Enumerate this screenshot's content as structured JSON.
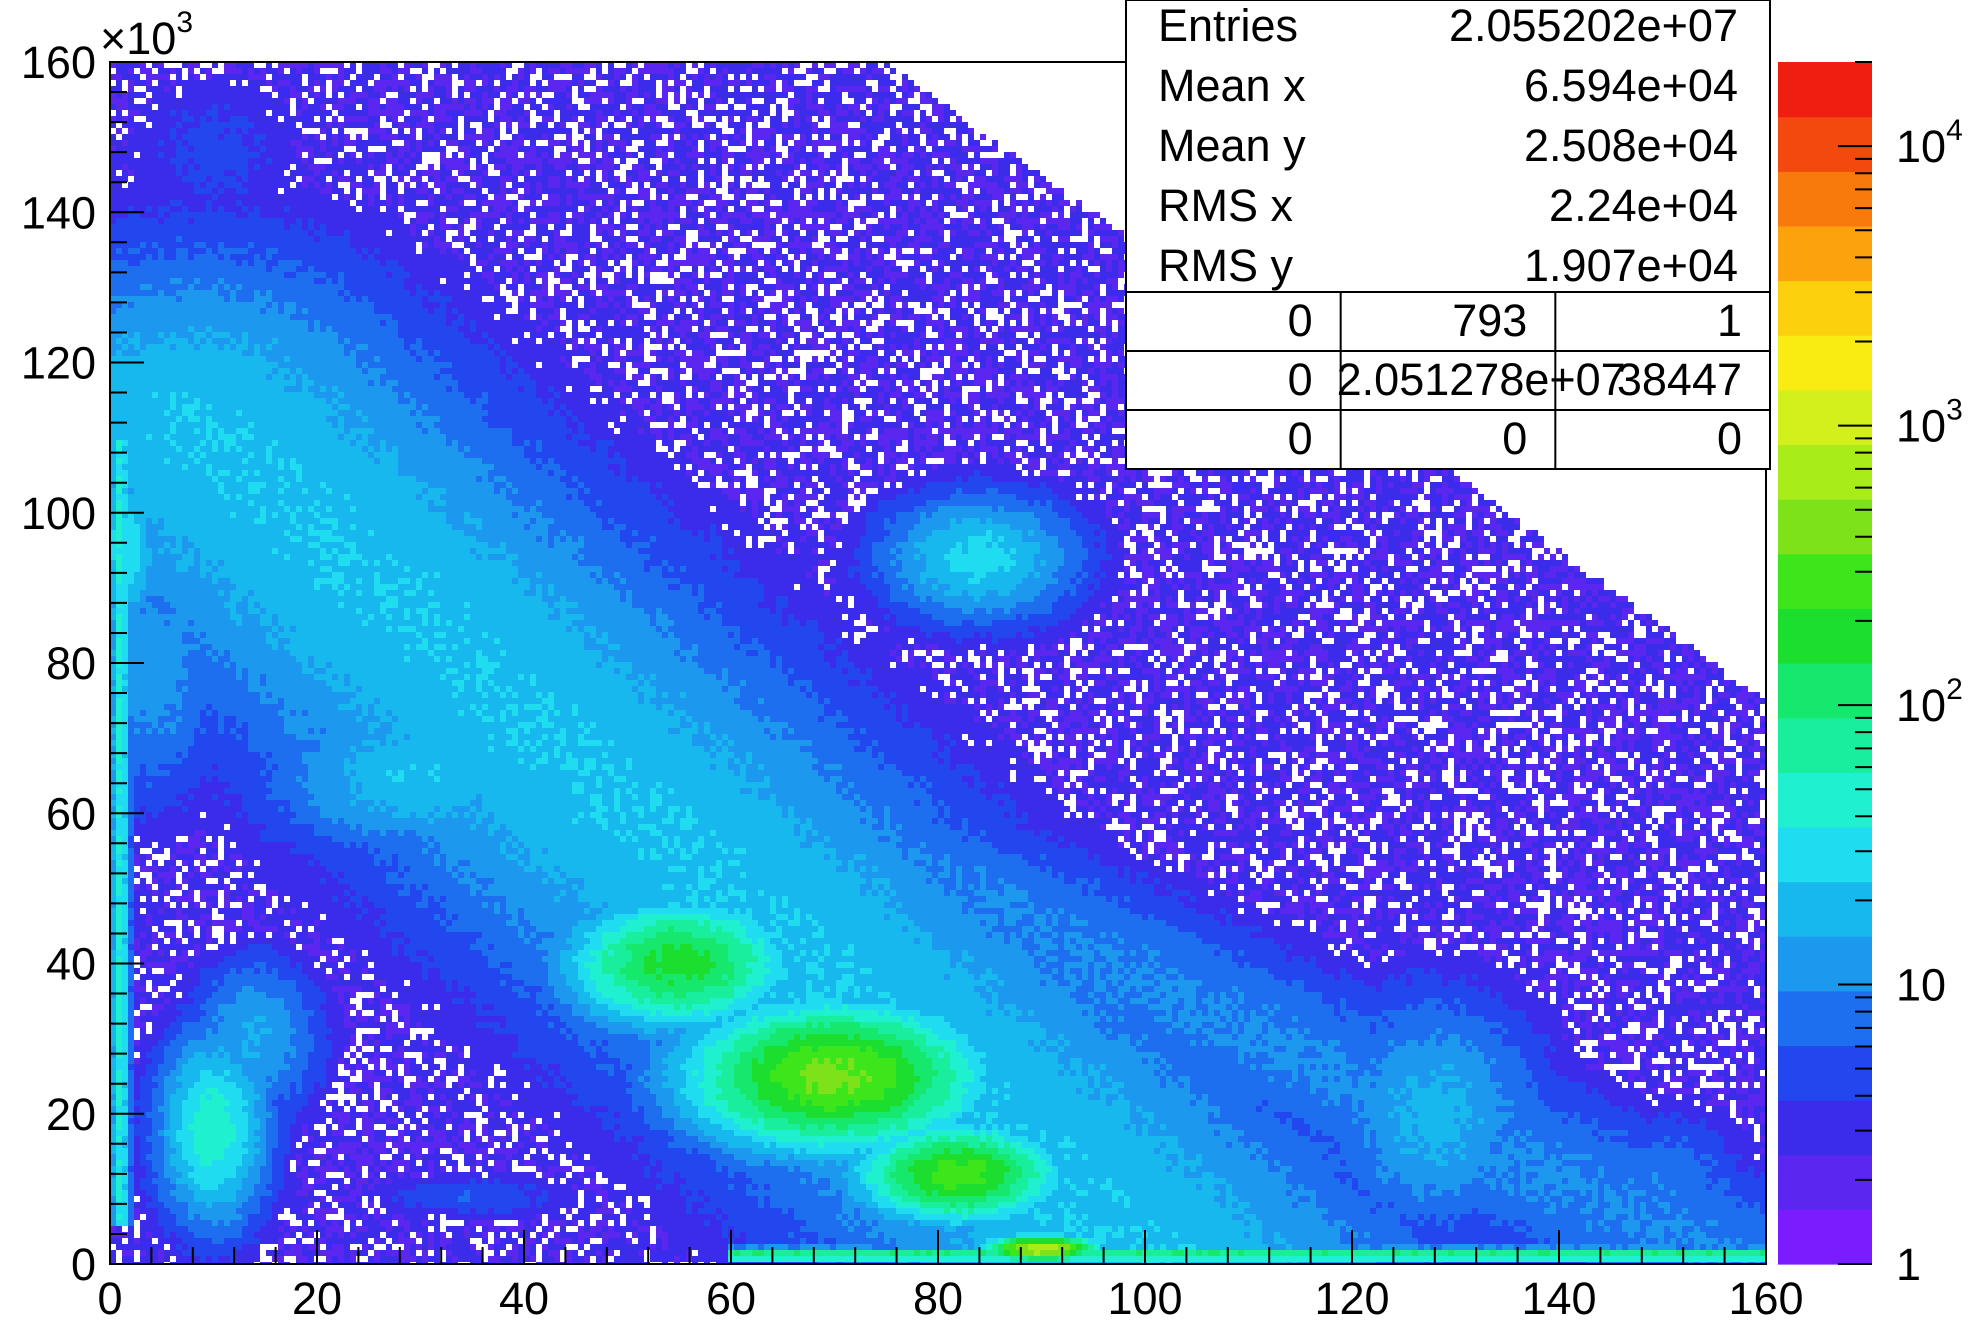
{
  "chart_data": {
    "type": "heatmap",
    "title": "",
    "xlabel": "",
    "ylabel": "",
    "xlim": [
      0,
      160
    ],
    "ylim": [
      0,
      160
    ],
    "x_ticks": [
      {
        "value": 0,
        "label": "0"
      },
      {
        "value": 20,
        "label": "20"
      },
      {
        "value": 40,
        "label": "40"
      },
      {
        "value": 60,
        "label": "60"
      },
      {
        "value": 80,
        "label": "80"
      },
      {
        "value": 100,
        "label": "100"
      },
      {
        "value": 120,
        "label": "120"
      },
      {
        "value": 140,
        "label": "140"
      },
      {
        "value": 160,
        "label": "160"
      }
    ],
    "y_ticks": [
      {
        "value": 0,
        "label": "0"
      },
      {
        "value": 20,
        "label": "20"
      },
      {
        "value": 40,
        "label": "40"
      },
      {
        "value": 60,
        "label": "60"
      },
      {
        "value": 80,
        "label": "80"
      },
      {
        "value": 100,
        "label": "100"
      },
      {
        "value": 120,
        "label": "120"
      },
      {
        "value": 140,
        "label": "140"
      },
      {
        "value": 160,
        "label": "160"
      }
    ],
    "y_multiplier": {
      "base": "×10",
      "exp": "3"
    },
    "colorbar": {
      "scale": "log",
      "range": [
        1,
        20000
      ],
      "palette": [
        "#7a1cff",
        "#5a26f0",
        "#3b2bea",
        "#2347ee",
        "#1d6ff0",
        "#1c98ee",
        "#16b8ee",
        "#20dcf0",
        "#1ff0cf",
        "#18ee9c",
        "#15e86c",
        "#1bde2e",
        "#3ce61a",
        "#7ee21a",
        "#a8ec1a",
        "#d4f01c",
        "#f8ec12",
        "#fdd00e",
        "#fca20c",
        "#f87a0c",
        "#f3480e",
        "#f01e10"
      ],
      "ticks": [
        {
          "value": 1,
          "base": "1",
          "exp": ""
        },
        {
          "value": 10,
          "base": "10",
          "exp": ""
        },
        {
          "value": 100,
          "base": "10",
          "exp": "2"
        },
        {
          "value": 1000,
          "base": "10",
          "exp": "3"
        },
        {
          "value": 10000,
          "base": "10",
          "exp": "4"
        }
      ]
    },
    "features": [
      {
        "kind": "background",
        "value": 0.4
      },
      {
        "kind": "band",
        "x1": 0,
        "y1": 103,
        "x2": 160,
        "y2": -2,
        "width": 11,
        "value": 1.0
      },
      {
        "kind": "band",
        "x1": 8,
        "y1": 112,
        "x2": 105,
        "y2": -6,
        "width": 22,
        "value": 1.35
      },
      {
        "kind": "band",
        "x1": 35,
        "y1": 86,
        "x2": 102,
        "y2": -2,
        "width": 14,
        "value": 1.3
      },
      {
        "kind": "blob",
        "cx": 10,
        "cy": 148,
        "sx": 9,
        "sy": 11,
        "value": 0.65
      },
      {
        "kind": "blob",
        "cx": 1.5,
        "cy": 95,
        "sx": 3,
        "sy": 10,
        "value": 1.55
      },
      {
        "kind": "blob",
        "cx": 4,
        "cy": 80,
        "sx": 7,
        "sy": 18,
        "value": 1.1
      },
      {
        "kind": "blob",
        "cx": 30,
        "cy": 65,
        "sx": 14,
        "sy": 10,
        "value": 1.35
      },
      {
        "kind": "blob",
        "cx": 55,
        "cy": 40,
        "sx": 10,
        "sy": 8,
        "value": 2.25
      },
      {
        "kind": "blob",
        "cx": 70,
        "cy": 25,
        "sx": 13,
        "sy": 9,
        "value": 2.6
      },
      {
        "kind": "blob",
        "cx": 82,
        "cy": 12,
        "sx": 9,
        "sy": 6,
        "value": 2.45
      },
      {
        "kind": "blob",
        "cx": 90,
        "cy": 2,
        "sx": 5,
        "sy": 1.6,
        "value": 2.9
      },
      {
        "kind": "blob",
        "cx": 84,
        "cy": 94,
        "sx": 9,
        "sy": 8,
        "value": 1.45
      },
      {
        "kind": "blob",
        "cx": 128,
        "cy": 20,
        "sx": 10,
        "sy": 15,
        "value": 1.25
      },
      {
        "kind": "blob",
        "cx": 150,
        "cy": 10,
        "sx": 8,
        "sy": 10,
        "value": 0.95
      },
      {
        "kind": "blob",
        "cx": 10,
        "cy": 18,
        "sx": 5,
        "sy": 12,
        "value": 1.7
      },
      {
        "kind": "blob",
        "cx": 14,
        "cy": 30,
        "sx": 6,
        "sy": 10,
        "value": 1.2
      },
      {
        "kind": "blob",
        "cx": 35,
        "cy": 9,
        "sx": 10,
        "sy": 3,
        "value": 0.75
      },
      {
        "kind": "xline",
        "y": 1.2,
        "sy": 0.9,
        "xmin": 60,
        "xmax": 160,
        "value": 2.0
      },
      {
        "kind": "yline",
        "x": 1.0,
        "sx": 0.9,
        "ymin": 5,
        "ymax": 110,
        "value": 1.6
      }
    ]
  },
  "stats": {
    "rows": [
      {
        "label": "Entries",
        "value": "2.055202e+07"
      },
      {
        "label": "Mean x",
        "value": "6.594e+04"
      },
      {
        "label": "Mean y",
        "value": "2.508e+04"
      },
      {
        "label": "RMS x",
        "value": "2.24e+04"
      },
      {
        "label": "RMS y",
        "value": "1.907e+04"
      }
    ],
    "grid": [
      [
        "0",
        "793",
        "1"
      ],
      [
        "0",
        "2.051278e+07",
        "38447"
      ],
      [
        "0",
        "0",
        "0"
      ]
    ]
  }
}
